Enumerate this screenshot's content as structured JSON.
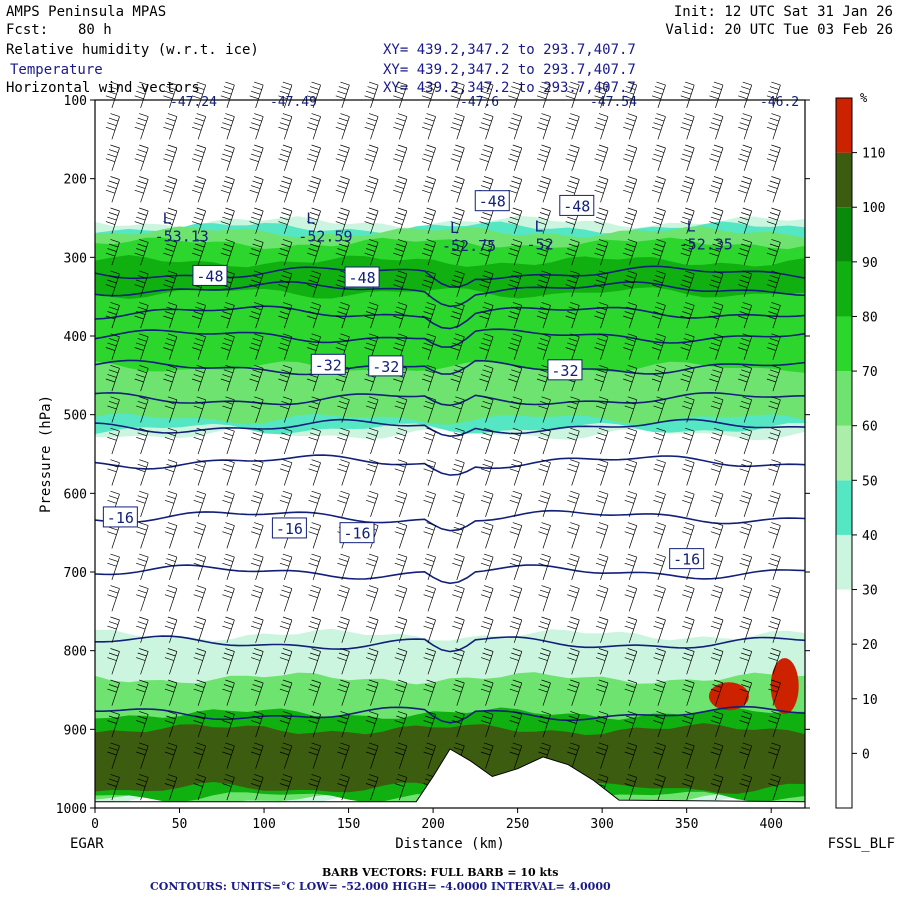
{
  "header": {
    "model": "AMPS Peninsula MPAS",
    "forecast_label": "Fcst:",
    "forecast_value": "80 h",
    "init": "Init: 12 UTC Sat 31 Jan 26",
    "valid": "Valid: 20 UTC Tue 03 Feb 26",
    "fields": [
      {
        "name": "Relative humidity (w.r.t. ice)",
        "xy": "XY= 439.2,347.2 to 293.7,407.7"
      },
      {
        "name": "Temperature",
        "xy": "XY= 439.2,347.2 to 293.7,407.7"
      },
      {
        "name": "Horizontal wind vectors",
        "xy": "XY= 439.2,347.2 to 293.7,407.7"
      }
    ]
  },
  "chart_data": {
    "type": "heatmap",
    "title": "",
    "xlabel": "Distance (km)",
    "ylabel": "Pressure (hPa)",
    "xlim": [
      0,
      420
    ],
    "ylim": [
      1000,
      100
    ],
    "x_ticks": [
      0,
      50,
      100,
      150,
      200,
      250,
      300,
      350,
      400
    ],
    "y_ticks": [
      100,
      200,
      300,
      400,
      500,
      600,
      700,
      800,
      900,
      1000
    ],
    "start_label": "EGAR",
    "end_label": "FSSL_BLF",
    "colorbar": {
      "unit": "%",
      "ticks": [
        0,
        10,
        20,
        30,
        40,
        50,
        60,
        70,
        80,
        90,
        100,
        110
      ],
      "levels": [
        {
          "from": -10,
          "to": 0,
          "color": "#ffffff"
        },
        {
          "from": 0,
          "to": 10,
          "color": "#ffffff"
        },
        {
          "from": 10,
          "to": 20,
          "color": "#ffffff"
        },
        {
          "from": 20,
          "to": 30,
          "color": "#ffffff"
        },
        {
          "from": 30,
          "to": 40,
          "color": "#ccf5e0"
        },
        {
          "from": 40,
          "to": 50,
          "color": "#55e6c3"
        },
        {
          "from": 50,
          "to": 60,
          "color": "#aaeeaa"
        },
        {
          "from": 60,
          "to": 70,
          "color": "#6fe36f"
        },
        {
          "from": 70,
          "to": 80,
          "color": "#2dd62d"
        },
        {
          "from": 80,
          "to": 90,
          "color": "#10b010"
        },
        {
          "from": 90,
          "to": 100,
          "color": "#0a8a0a"
        },
        {
          "from": 100,
          "to": 110,
          "color": "#3c5c10"
        },
        {
          "from": 110,
          "to": 120,
          "color": "#cc2200"
        }
      ]
    },
    "rh_bands": [
      {
        "p_top": 255,
        "p_bot": 525,
        "color": "#ccf5e0"
      },
      {
        "p_top": 262,
        "p_bot": 518,
        "color": "#55e6c3"
      },
      {
        "p_top": 268,
        "p_bot": 505,
        "color": "#6fe36f"
      },
      {
        "p_top": 282,
        "p_bot": 440,
        "color": "#2dd62d"
      },
      {
        "p_top": 305,
        "p_bot": 345,
        "color": "#10b010"
      },
      {
        "p_top": 780,
        "p_bot": 990,
        "color": "#ccf5e0"
      },
      {
        "p_top": 835,
        "p_bot": 990,
        "color": "#6fe36f"
      },
      {
        "p_top": 880,
        "p_bot": 985,
        "color": "#10b010"
      },
      {
        "p_top": 900,
        "p_bot": 975,
        "color": "#3c5c10"
      }
    ],
    "red_patches": [
      {
        "x": 375,
        "p": 858
      },
      {
        "x": 408,
        "p": 845
      }
    ],
    "terrain": [
      {
        "x": 0,
        "p": 992
      },
      {
        "x": 190,
        "p": 992
      },
      {
        "x": 200,
        "p": 960
      },
      {
        "x": 210,
        "p": 925
      },
      {
        "x": 222,
        "p": 940
      },
      {
        "x": 235,
        "p": 960
      },
      {
        "x": 250,
        "p": 950
      },
      {
        "x": 265,
        "p": 935
      },
      {
        "x": 280,
        "p": 945
      },
      {
        "x": 295,
        "p": 965
      },
      {
        "x": 310,
        "p": 990
      },
      {
        "x": 420,
        "p": 992
      }
    ],
    "temperature_contours": [
      {
        "value": -48,
        "p": 320
      },
      {
        "value": -44,
        "p": 340
      },
      {
        "value": -40,
        "p": 370
      },
      {
        "value": -36,
        "p": 400
      },
      {
        "value": -32,
        "p": 440
      },
      {
        "value": -28,
        "p": 480
      },
      {
        "value": -24,
        "p": 515
      },
      {
        "value": -20,
        "p": 560
      },
      {
        "value": -16,
        "p": 630
      },
      {
        "value": -12,
        "p": 700
      },
      {
        "value": -8,
        "p": 790
      },
      {
        "value": -4,
        "p": 880
      }
    ],
    "contour_labels": [
      {
        "text": "-48",
        "x": 235,
        "p": 228
      },
      {
        "text": "-48",
        "x": 285,
        "p": 234
      },
      {
        "text": "-48",
        "x": 68,
        "p": 323
      },
      {
        "text": "-48",
        "x": 158,
        "p": 325
      },
      {
        "text": "-32",
        "x": 138,
        "p": 436
      },
      {
        "text": "-32",
        "x": 172,
        "p": 438
      },
      {
        "text": "-32",
        "x": 278,
        "p": 443
      },
      {
        "text": "-16",
        "x": 15,
        "p": 630
      },
      {
        "text": "-16",
        "x": 115,
        "p": 644
      },
      {
        "text": "-16",
        "x": 155,
        "p": 650
      },
      {
        "text": "-16",
        "x": 350,
        "p": 683
      }
    ],
    "lows": [
      {
        "text": "L",
        "value": "-53.13",
        "x": 40,
        "p": 270
      },
      {
        "text": "L",
        "value": "-52.59",
        "x": 125,
        "p": 270
      },
      {
        "text": "L",
        "value": "-52.75",
        "x": 210,
        "p": 282
      },
      {
        "text": "L",
        "value": "-52",
        "x": 260,
        "p": 280
      },
      {
        "text": "L",
        "value": "-52.35",
        "x": 350,
        "p": 280
      }
    ],
    "top_labels": [
      "-47.24",
      "-47.49",
      "-47.6",
      "-47.54",
      "-46.2"
    ],
    "barb_footer": "BARB VECTORS: FULL BARB = 10 kts",
    "contours_footer": "CONTOURS: UNITS=°C LOW= -52.000 HIGH= -4.0000 INTERVAL= 4.0000"
  }
}
